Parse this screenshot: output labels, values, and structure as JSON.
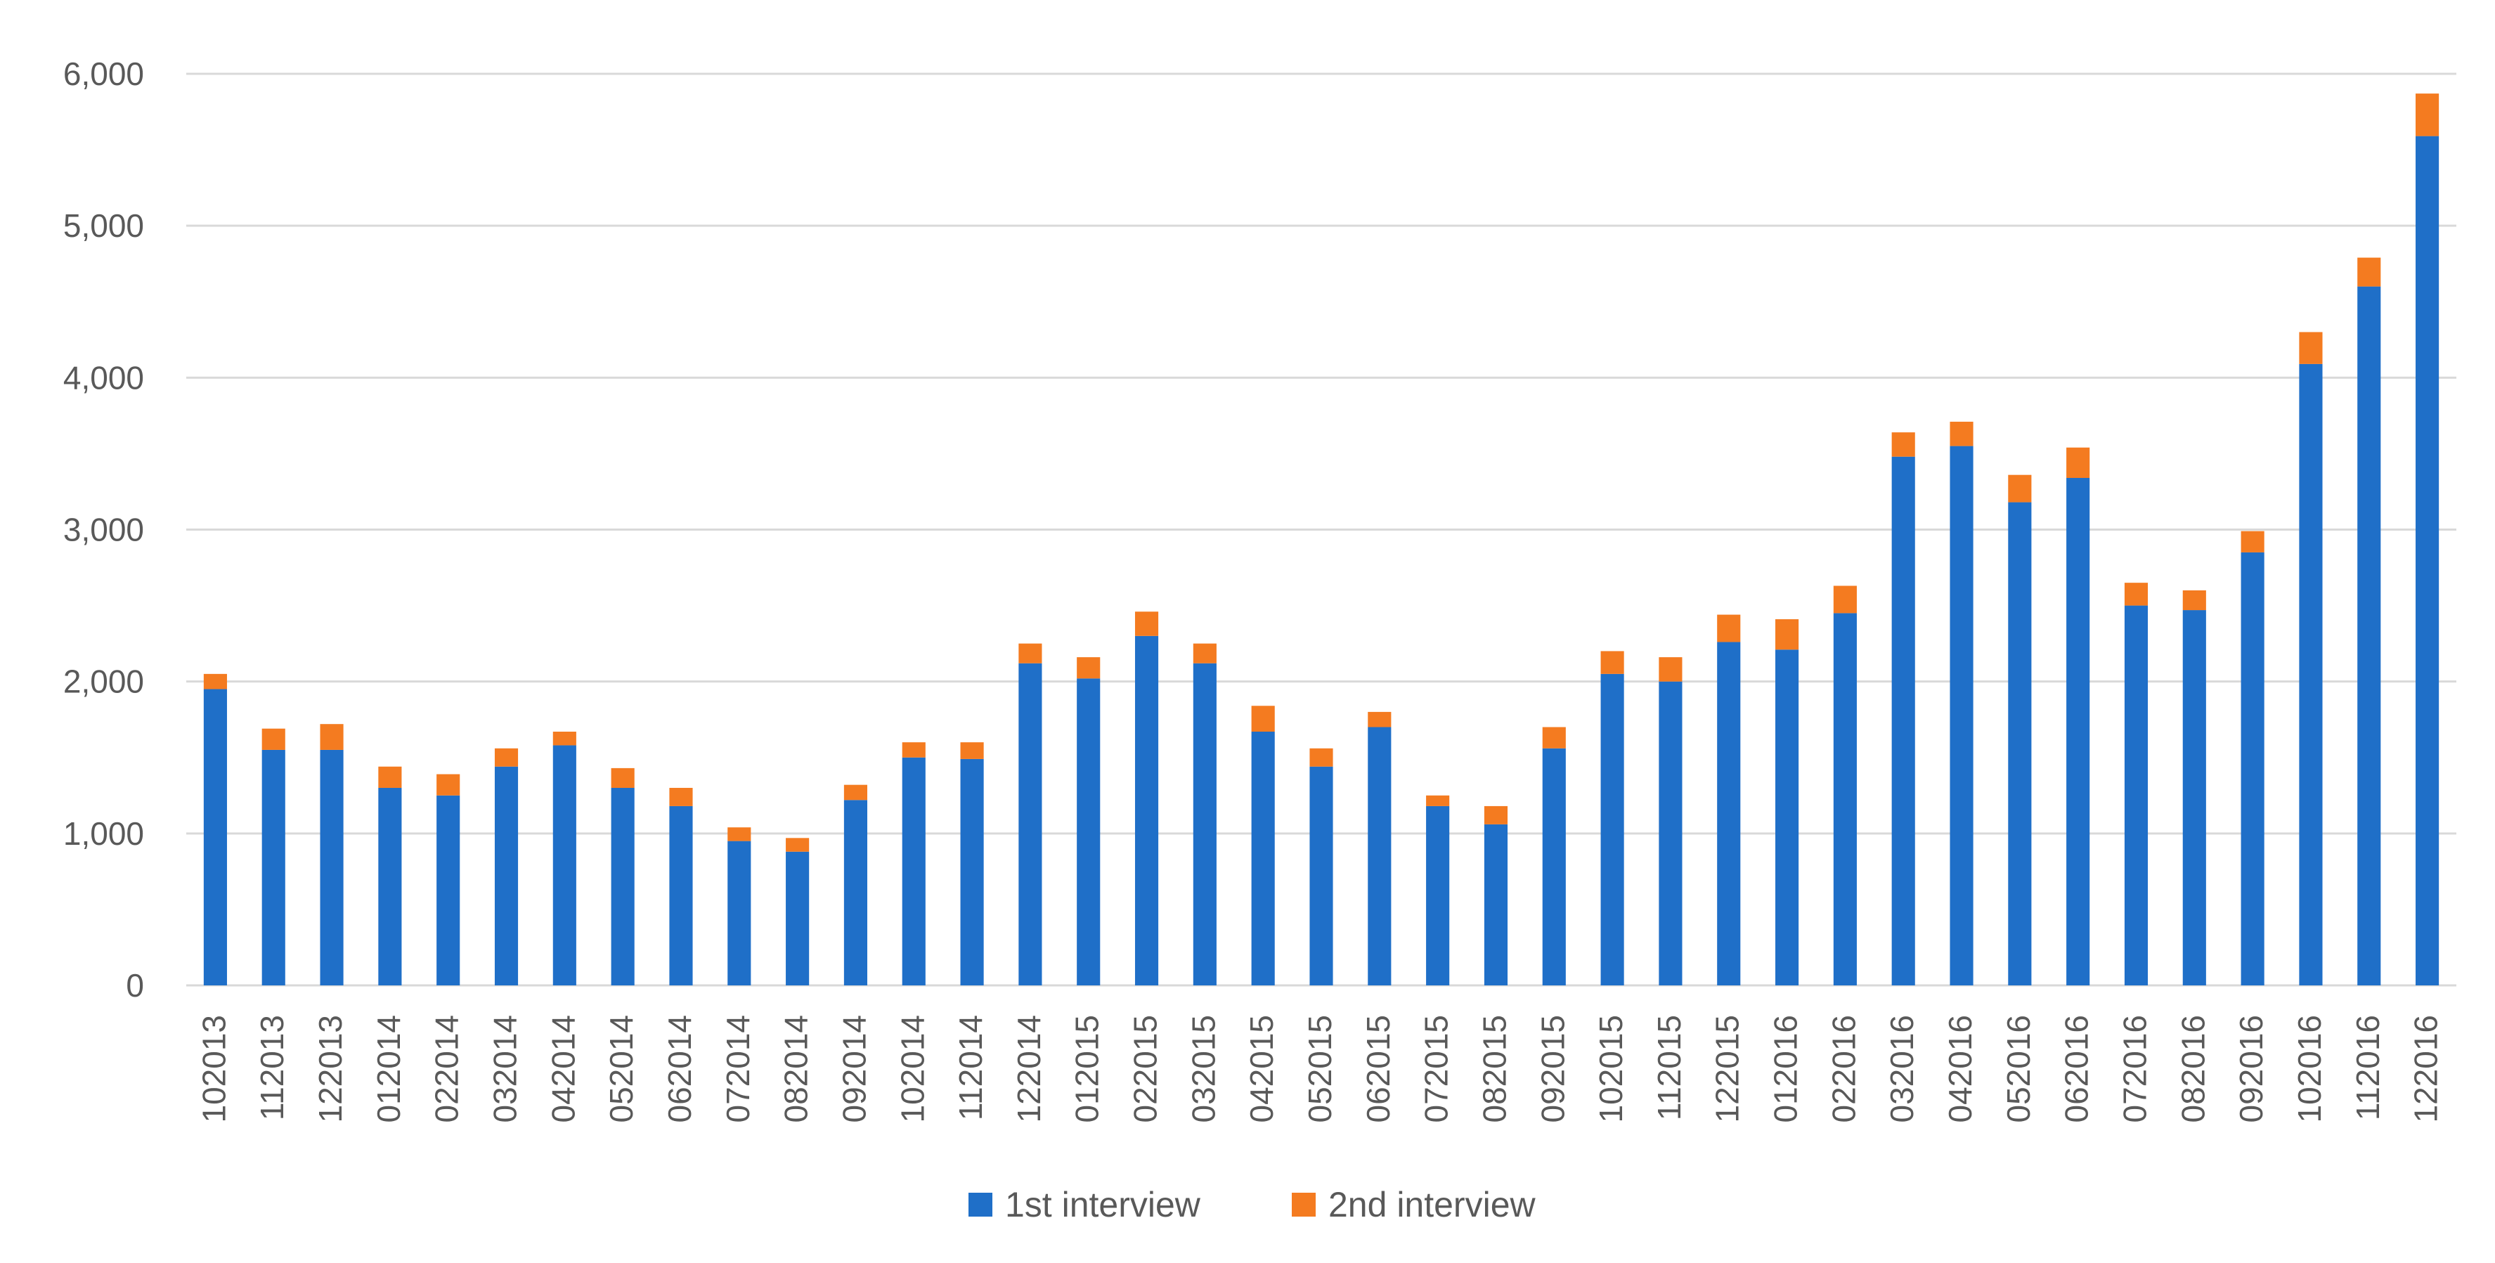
{
  "chart_data": {
    "type": "bar",
    "stacked": true,
    "title": "",
    "xlabel": "",
    "ylabel": "",
    "ylim": [
      0,
      6000
    ],
    "y_ticks": [
      0,
      1000,
      2000,
      3000,
      4000,
      5000,
      6000
    ],
    "y_tick_labels": [
      "0",
      "1,000",
      "2,000",
      "3,000",
      "4,000",
      "5,000",
      "6,000"
    ],
    "grid": true,
    "legend_position": "bottom",
    "categories": [
      "102013",
      "112013",
      "122013",
      "012014",
      "022014",
      "032014",
      "042014",
      "052014",
      "062014",
      "072014",
      "082014",
      "092014",
      "102014",
      "112014",
      "122014",
      "012015",
      "022015",
      "032015",
      "042015",
      "052015",
      "062015",
      "072015",
      "082015",
      "092015",
      "102015",
      "112015",
      "122015",
      "012016",
      "022016",
      "032016",
      "042016",
      "052016",
      "062016",
      "072016",
      "082016",
      "092016",
      "102016",
      "112016",
      "122016"
    ],
    "series": [
      {
        "name": "1st interview",
        "color": "#1F6FC8",
        "values": [
          1950,
          1550,
          1550,
          1300,
          1250,
          1440,
          1580,
          1300,
          1180,
          950,
          880,
          1220,
          1500,
          1490,
          2120,
          2020,
          2300,
          2120,
          1670,
          1440,
          1700,
          1180,
          1060,
          1560,
          2050,
          2000,
          2260,
          2210,
          2450,
          3480,
          3550,
          3180,
          3340,
          2500,
          2470,
          2850,
          4090,
          4600,
          5590
        ]
      },
      {
        "name": "2nd interview",
        "color": "#F47B20",
        "values": [
          100,
          140,
          170,
          140,
          140,
          120,
          90,
          130,
          120,
          90,
          90,
          100,
          100,
          110,
          130,
          140,
          160,
          130,
          170,
          120,
          100,
          70,
          120,
          140,
          150,
          160,
          180,
          200,
          180,
          160,
          160,
          180,
          200,
          150,
          130,
          140,
          210,
          190,
          280
        ]
      }
    ]
  }
}
